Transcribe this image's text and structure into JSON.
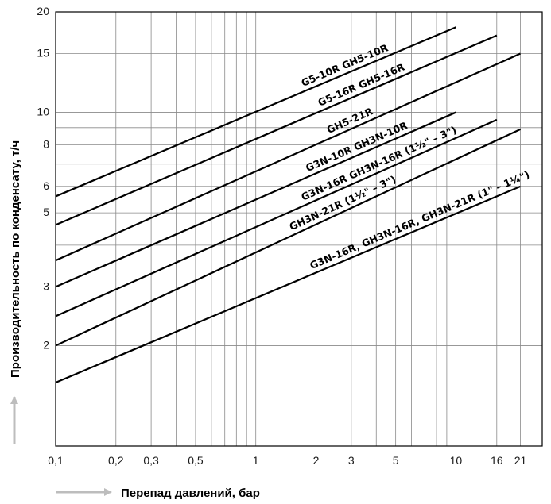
{
  "chart_data": {
    "type": "line",
    "x_scale": "log",
    "y_scale": "log",
    "grid": true,
    "xlabel": "Перепад давлений, бар",
    "ylabel": "Производительность по конденсату, т/ч",
    "xlim": [
      0.1,
      27
    ],
    "ylim": [
      1,
      20
    ],
    "x_gridlines": [
      0.1,
      0.2,
      0.3,
      0.4,
      0.5,
      0.6,
      0.7,
      0.8,
      0.9,
      1,
      2,
      3,
      4,
      5,
      6,
      7,
      8,
      9,
      10,
      16,
      21
    ],
    "y_gridlines": [
      1,
      2,
      3,
      4,
      5,
      6,
      7,
      8,
      9,
      10,
      15,
      20
    ],
    "x_ticks": [
      {
        "value": 0.1,
        "label": "0,1"
      },
      {
        "value": 0.2,
        "label": "0,2"
      },
      {
        "value": 0.3,
        "label": "0,3"
      },
      {
        "value": 0.5,
        "label": "0,5"
      },
      {
        "value": 1,
        "label": "1"
      },
      {
        "value": 2,
        "label": "2"
      },
      {
        "value": 3,
        "label": "3"
      },
      {
        "value": 5,
        "label": "5"
      },
      {
        "value": 10,
        "label": "10"
      },
      {
        "value": 16,
        "label": "16"
      },
      {
        "value": 21,
        "label": "21"
      }
    ],
    "y_ticks": [
      {
        "value": 2,
        "label": "2"
      },
      {
        "value": 3,
        "label": "3"
      },
      {
        "value": 5,
        "label": "5"
      },
      {
        "value": 6,
        "label": "6"
      },
      {
        "value": 8,
        "label": "8"
      },
      {
        "value": 10,
        "label": "10"
      },
      {
        "value": 15,
        "label": "15"
      },
      {
        "value": 20,
        "label": "20"
      }
    ],
    "series": [
      {
        "name": "G5-10R GH5-10R",
        "x": [
          0.1,
          10
        ],
        "y": [
          5.6,
          18.0
        ]
      },
      {
        "name": "G5-16R GH5-16R",
        "x": [
          0.1,
          16
        ],
        "y": [
          4.6,
          17.0
        ]
      },
      {
        "name": "GH5-21R",
        "x": [
          0.1,
          21
        ],
        "y": [
          3.6,
          15.0
        ]
      },
      {
        "name": "G3N-10R GH3N-10R",
        "x": [
          0.1,
          10
        ],
        "y": [
          3.0,
          10.0
        ]
      },
      {
        "name": "G3N-16R GH3N-16R (1½\" – 3\")",
        "x": [
          0.1,
          16
        ],
        "y": [
          2.45,
          9.5
        ]
      },
      {
        "name": "GH3N-21R (1½\" – 3\")",
        "x": [
          0.1,
          21
        ],
        "y": [
          2.0,
          8.9
        ]
      },
      {
        "name": "G3N-16R, GH3N-16R, GH3N-21R (1\" – 1¼\")",
        "x": [
          0.1,
          21
        ],
        "y": [
          1.55,
          6.0
        ]
      }
    ]
  }
}
